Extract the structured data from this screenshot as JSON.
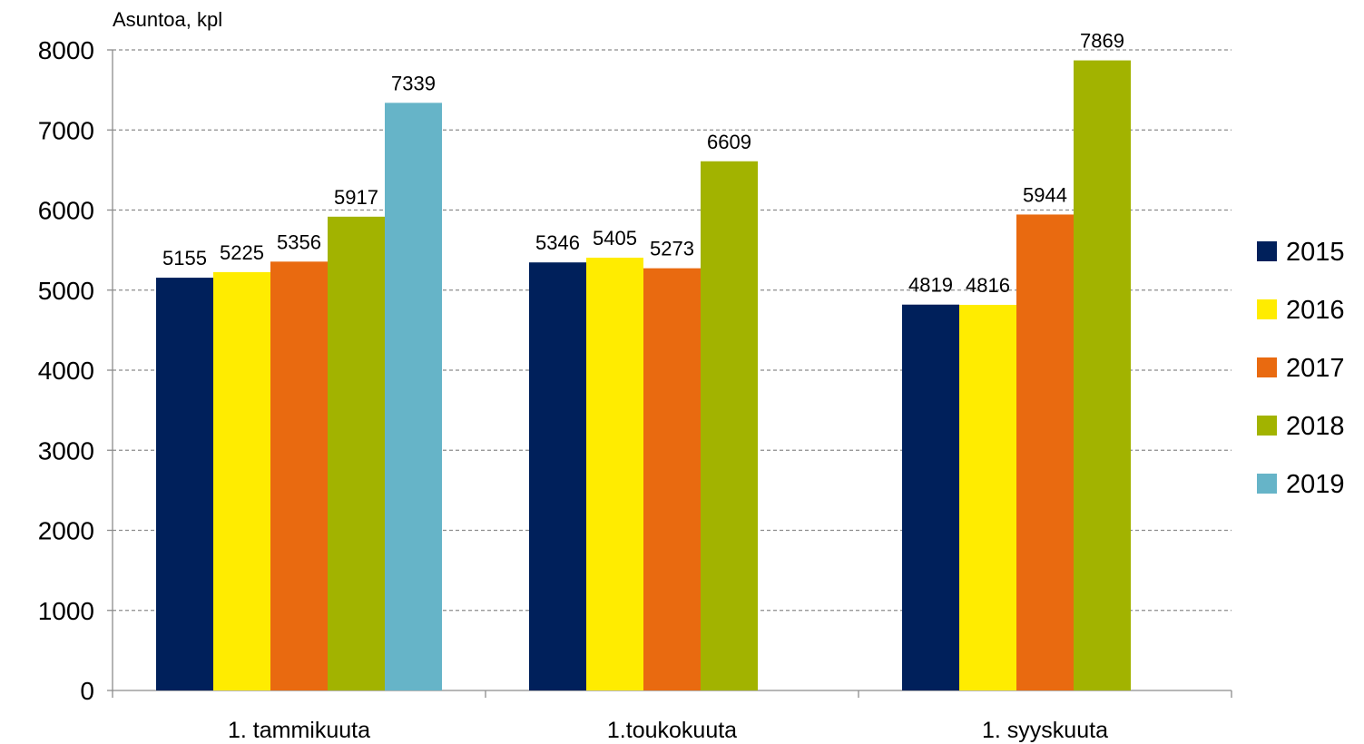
{
  "chart_data": {
    "type": "bar",
    "ylabel": "Asuntoa, kpl",
    "xlabel": "",
    "title": "",
    "ylim": [
      0,
      8000
    ],
    "yticks": [
      "0",
      "1000",
      "2000",
      "3000",
      "4000",
      "5000",
      "6000",
      "7000",
      "8000"
    ],
    "grid": "horizontal-dashed",
    "legend_position": "right",
    "categories": [
      "1. tammikuuta",
      "1.toukokuuta",
      "1. syyskuuta"
    ],
    "series": [
      {
        "name": "2015",
        "color": "#00205B",
        "values": [
          5155,
          5346,
          4819
        ]
      },
      {
        "name": "2016",
        "color": "#FFEC00",
        "values": [
          5225,
          5405,
          4816
        ]
      },
      {
        "name": "2017",
        "color": "#E96A10",
        "values": [
          5356,
          5273,
          5944
        ]
      },
      {
        "name": "2018",
        "color": "#A2B300",
        "values": [
          5917,
          6609,
          7869
        ]
      },
      {
        "name": "2019",
        "color": "#66B4C8",
        "values": [
          7339,
          null,
          null
        ]
      }
    ]
  }
}
